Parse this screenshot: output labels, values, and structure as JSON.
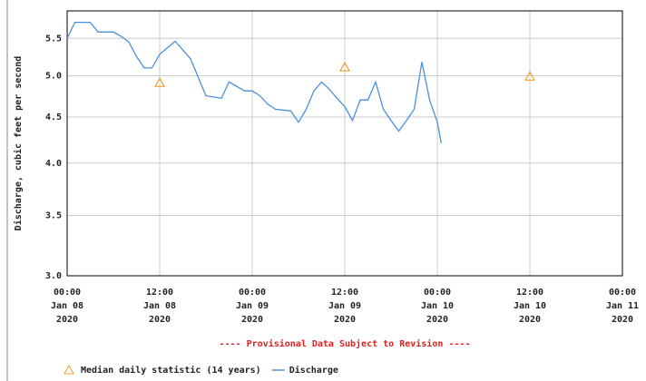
{
  "chart_data": {
    "type": "line",
    "ylabel": "Discharge, cubic feet per second",
    "subtitle": "---- Provisional Data Subject to Revision ----",
    "yscale": "log",
    "ylim": [
      3.0,
      5.9
    ],
    "yticks": [
      5.5,
      {
        "value": 5,
        "label": "5.0"
      },
      4.5,
      {
        "value": 4,
        "label": "4.0"
      },
      3.5,
      {
        "value": 3,
        "label": "3.0"
      }
    ],
    "xlim": [
      "2020-01-08T00:00",
      "2020-01-11T00:00"
    ],
    "xticks": [
      {
        "value": "2020-01-08T00:00",
        "label": "00:00\nJan 08\n2020"
      },
      {
        "value": "2020-01-08T12:00",
        "label": "12:00\nJan 08\n2020"
      },
      {
        "value": "2020-01-09T00:00",
        "label": "00:00\nJan 09\n2020"
      },
      {
        "value": "2020-01-09T12:00",
        "label": "12:00\nJan 09\n2020"
      },
      {
        "value": "2020-01-10T00:00",
        "label": "00:00\nJan 10\n2020"
      },
      {
        "value": "2020-01-10T12:00",
        "label": "12:00\nJan 10\n2020"
      },
      {
        "value": "2020-01-11T00:00",
        "label": "00:00\nJan 11\n2020"
      }
    ],
    "grid": true,
    "series": [
      {
        "name": "Median daily statistic (14 years)",
        "color": "#f0a030",
        "marker": "triangle",
        "x": [
          "2020-01-08T12:00",
          "2020-01-09T12:00",
          "2020-01-10T12:00"
        ],
        "values": [
          4.91,
          5.11,
          4.99
        ]
      },
      {
        "name": "Discharge",
        "color": "#4a90d9",
        "x": [
          "2020-01-08T00:00",
          "2020-01-08T01:00",
          "2020-01-08T03:00",
          "2020-01-08T04:00",
          "2020-01-08T06:00",
          "2020-01-08T07:00",
          "2020-01-08T08:00",
          "2020-01-08T09:00",
          "2020-01-08T10:00",
          "2020-01-08T11:00",
          "2020-01-08T12:00",
          "2020-01-08T13:00",
          "2020-01-08T14:00",
          "2020-01-08T15:00",
          "2020-01-08T16:00",
          "2020-01-08T17:00",
          "2020-01-08T18:00",
          "2020-01-08T20:00",
          "2020-01-08T21:00",
          "2020-01-08T23:00",
          "2020-01-09T00:00",
          "2020-01-09T01:00",
          "2020-01-09T02:00",
          "2020-01-09T03:00",
          "2020-01-09T05:00",
          "2020-01-09T06:00",
          "2020-01-09T07:00",
          "2020-01-09T08:00",
          "2020-01-09T09:00",
          "2020-01-09T10:00",
          "2020-01-09T11:00",
          "2020-01-09T12:00",
          "2020-01-09T13:00",
          "2020-01-09T14:00",
          "2020-01-09T15:00",
          "2020-01-09T16:00",
          "2020-01-09T17:00",
          "2020-01-09T18:00",
          "2020-01-09T19:00",
          "2020-01-09T20:00",
          "2020-01-09T21:00",
          "2020-01-09T22:00",
          "2020-01-09T23:00",
          "2020-01-10T00:00",
          "2020-01-10T00:30"
        ],
        "values": [
          5.5,
          5.73,
          5.73,
          5.59,
          5.59,
          5.53,
          5.45,
          5.25,
          5.1,
          5.1,
          5.28,
          5.37,
          5.46,
          5.34,
          5.22,
          4.98,
          4.75,
          4.72,
          4.92,
          4.81,
          4.81,
          4.75,
          4.65,
          4.59,
          4.57,
          4.44,
          4.59,
          4.81,
          4.92,
          4.83,
          4.72,
          4.62,
          4.46,
          4.7,
          4.7,
          4.92,
          4.59,
          4.46,
          4.34,
          4.46,
          4.59,
          5.18,
          4.7,
          4.44,
          4.21
        ]
      }
    ]
  }
}
